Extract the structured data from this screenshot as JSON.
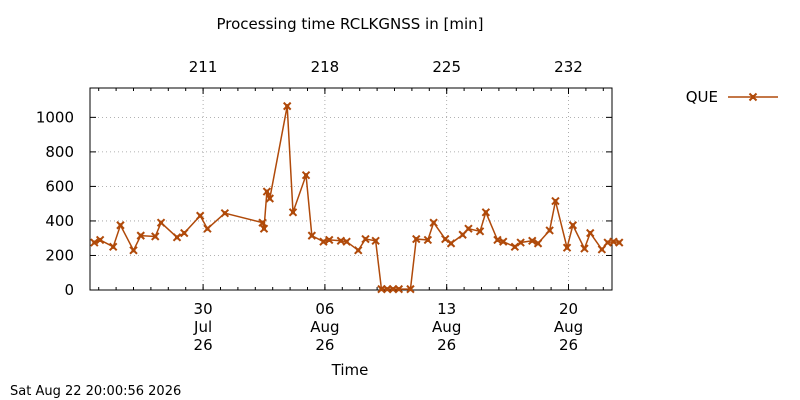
{
  "chart_data": {
    "type": "line",
    "title": "Processing time RCLKGNSS in [min]",
    "xlabel": "Time",
    "ylabel": "",
    "ylim": [
      0,
      1170
    ],
    "y_ticks": [
      0,
      200,
      400,
      600,
      800,
      1000
    ],
    "x_range": [
      "2026-07-23T12:00",
      "2026-08-22T12:00"
    ],
    "x_ticks": [
      {
        "date": "2026-07-30",
        "lines": [
          "30",
          "Jul",
          "26"
        ]
      },
      {
        "date": "2026-08-06",
        "lines": [
          "06",
          "Aug",
          "26"
        ]
      },
      {
        "date": "2026-08-13",
        "lines": [
          "13",
          "Aug",
          "26"
        ]
      },
      {
        "date": "2026-08-20",
        "lines": [
          "20",
          "Aug",
          "26"
        ]
      }
    ],
    "x2_ticks": [
      {
        "date": "2026-07-30",
        "label": "211"
      },
      {
        "date": "2026-08-06",
        "label": "218"
      },
      {
        "date": "2026-08-13",
        "label": "225"
      },
      {
        "date": "2026-08-20",
        "label": "232"
      }
    ],
    "grid": true,
    "legend_position": "outside-top-right",
    "series": [
      {
        "name": "QUE",
        "color": "#b04a0a",
        "marker": "x",
        "points": [
          [
            "2026-07-23T18:00",
            275
          ],
          [
            "2026-07-24T02:00",
            290
          ],
          [
            "2026-07-24T20:00",
            250
          ],
          [
            "2026-07-25T06:00",
            375
          ],
          [
            "2026-07-26T00:00",
            230
          ],
          [
            "2026-07-26T10:00",
            315
          ],
          [
            "2026-07-27T06:00",
            310
          ],
          [
            "2026-07-27T14:00",
            390
          ],
          [
            "2026-07-28T12:00",
            305
          ],
          [
            "2026-07-28T22:00",
            330
          ],
          [
            "2026-07-29T20:00",
            430
          ],
          [
            "2026-07-30T06:00",
            355
          ],
          [
            "2026-07-31T06:00",
            445
          ],
          [
            "2026-08-02T10:00",
            390
          ],
          [
            "2026-08-02T12:00",
            355
          ],
          [
            "2026-08-02T16:00",
            570
          ],
          [
            "2026-08-02T20:00",
            530
          ],
          [
            "2026-08-03T20:00",
            1065
          ],
          [
            "2026-08-04T04:00",
            450
          ],
          [
            "2026-08-04T22:00",
            665
          ],
          [
            "2026-08-05T06:00",
            315
          ],
          [
            "2026-08-05T22:00",
            280
          ],
          [
            "2026-08-06T06:00",
            290
          ],
          [
            "2026-08-06T22:00",
            285
          ],
          [
            "2026-08-07T06:00",
            280
          ],
          [
            "2026-08-07T22:00",
            230
          ],
          [
            "2026-08-08T08:00",
            295
          ],
          [
            "2026-08-08T22:00",
            285
          ],
          [
            "2026-08-09T06:00",
            5
          ],
          [
            "2026-08-09T14:00",
            5
          ],
          [
            "2026-08-09T22:00",
            5
          ],
          [
            "2026-08-10T06:00",
            5
          ],
          [
            "2026-08-10T22:00",
            5
          ],
          [
            "2026-08-11T06:00",
            295
          ],
          [
            "2026-08-11T22:00",
            290
          ],
          [
            "2026-08-12T06:00",
            390
          ],
          [
            "2026-08-12T22:00",
            295
          ],
          [
            "2026-08-13T06:00",
            270
          ],
          [
            "2026-08-13T22:00",
            320
          ],
          [
            "2026-08-14T06:00",
            355
          ],
          [
            "2026-08-14T22:00",
            340
          ],
          [
            "2026-08-15T06:00",
            450
          ],
          [
            "2026-08-15T22:00",
            290
          ],
          [
            "2026-08-16T06:00",
            280
          ],
          [
            "2026-08-16T22:00",
            250
          ],
          [
            "2026-08-17T06:00",
            275
          ],
          [
            "2026-08-17T22:00",
            285
          ],
          [
            "2026-08-18T06:00",
            270
          ],
          [
            "2026-08-18T22:00",
            345
          ],
          [
            "2026-08-19T06:00",
            515
          ],
          [
            "2026-08-19T22:00",
            245
          ],
          [
            "2026-08-20T06:00",
            375
          ],
          [
            "2026-08-20T22:00",
            240
          ],
          [
            "2026-08-21T06:00",
            330
          ],
          [
            "2026-08-21T22:00",
            235
          ],
          [
            "2026-08-22T06:00",
            275
          ],
          [
            "2026-08-22T14:00",
            280
          ],
          [
            "2026-08-22T22:00",
            275
          ]
        ]
      }
    ]
  },
  "footer": {
    "timestamp": "Sat Aug 22 20:00:56 2026"
  }
}
